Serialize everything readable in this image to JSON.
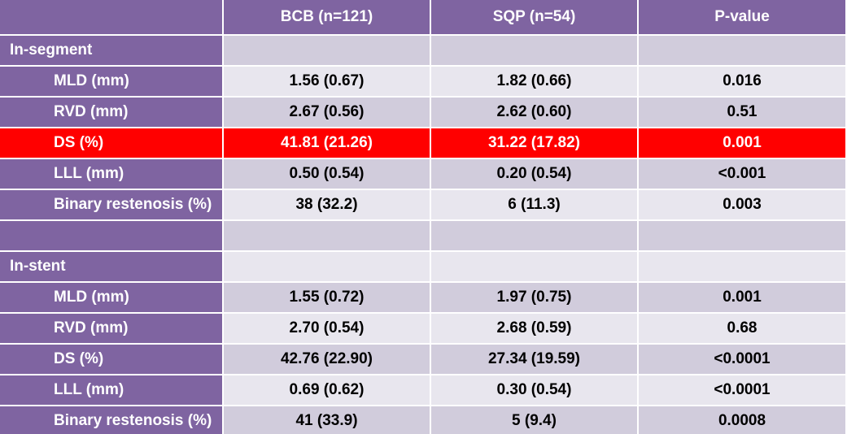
{
  "table": {
    "header": [
      "BCB  (n=121)",
      "SQP (n=54)",
      "P-value"
    ],
    "sections": [
      {
        "title": "In-segment",
        "rows": [
          {
            "label": "MLD (mm)",
            "values": [
              "1.56 (0.67)",
              "1.82 (0.66)",
              "0.016"
            ]
          },
          {
            "label": "RVD (mm)",
            "values": [
              "2.67 (0.56)",
              "2.62 (0.60)",
              "0.51"
            ]
          },
          {
            "label": "DS (%)",
            "values": [
              "41.81 (21.26)",
              "31.22 (17.82)",
              "0.001"
            ],
            "highlight": true
          },
          {
            "label": "LLL (mm)",
            "values": [
              "0.50 (0.54)",
              "0.20 (0.54)",
              "<0.001"
            ]
          },
          {
            "label": "Binary restenosis (%)",
            "values": [
              "38 (32.2)",
              "6 (11.3)",
              "0.003"
            ]
          }
        ]
      },
      {
        "title": "In-stent",
        "rows": [
          {
            "label": "MLD (mm)",
            "values": [
              "1.55 (0.72)",
              "1.97 (0.75)",
              "0.001"
            ]
          },
          {
            "label": "RVD (mm)",
            "values": [
              "2.70 (0.54)",
              "2.68 (0.59)",
              "0.68"
            ]
          },
          {
            "label": "DS (%)",
            "values": [
              "42.76 (22.90)",
              "27.34 (19.59)",
              "<0.0001"
            ]
          },
          {
            "label": "LLL (mm)",
            "values": [
              "0.69 (0.62)",
              "0.30 (0.54)",
              "<0.0001"
            ]
          },
          {
            "label": "Binary restenosis (%)",
            "values": [
              "41 (33.9)",
              "5 (9.4)",
              "0.0008"
            ]
          }
        ]
      }
    ]
  }
}
